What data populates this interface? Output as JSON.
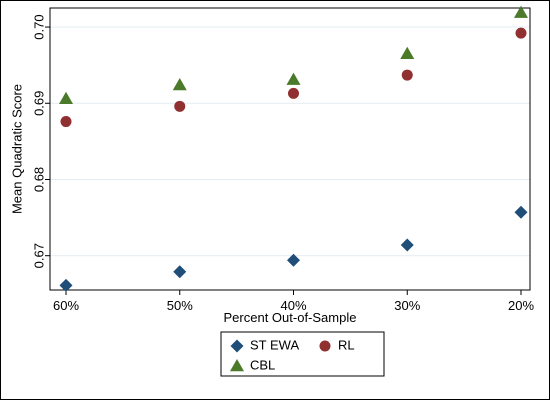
{
  "chart_data": {
    "type": "scatter",
    "xlabel": "Percent Out-of-Sample",
    "ylabel": "Mean Quadratic Score",
    "x_tick_labels": [
      "60%",
      "50%",
      "40%",
      "30%",
      "20%"
    ],
    "x": [
      60,
      50,
      40,
      30,
      20
    ],
    "xlim": [
      60,
      20
    ],
    "ylim": [
      0.6655,
      0.7025
    ],
    "y_ticks": [
      "0.67",
      "0.68",
      "0.69",
      "0.70"
    ],
    "grid": "horizontal",
    "legend_position": "bottom",
    "series": [
      {
        "name": "ST EWA",
        "marker": "diamond",
        "color": "#1f4e79",
        "values": [
          0.6661,
          0.6679,
          0.6694,
          0.6714,
          0.6757
        ]
      },
      {
        "name": "RL",
        "marker": "circle",
        "color": "#903030",
        "values": [
          0.6876,
          0.6896,
          0.6913,
          0.6937,
          0.6992
        ]
      },
      {
        "name": "CBL",
        "marker": "triangle",
        "color": "#4a7a2a",
        "values": [
          0.6906,
          0.6924,
          0.6931,
          0.6965,
          0.7019
        ]
      }
    ]
  }
}
